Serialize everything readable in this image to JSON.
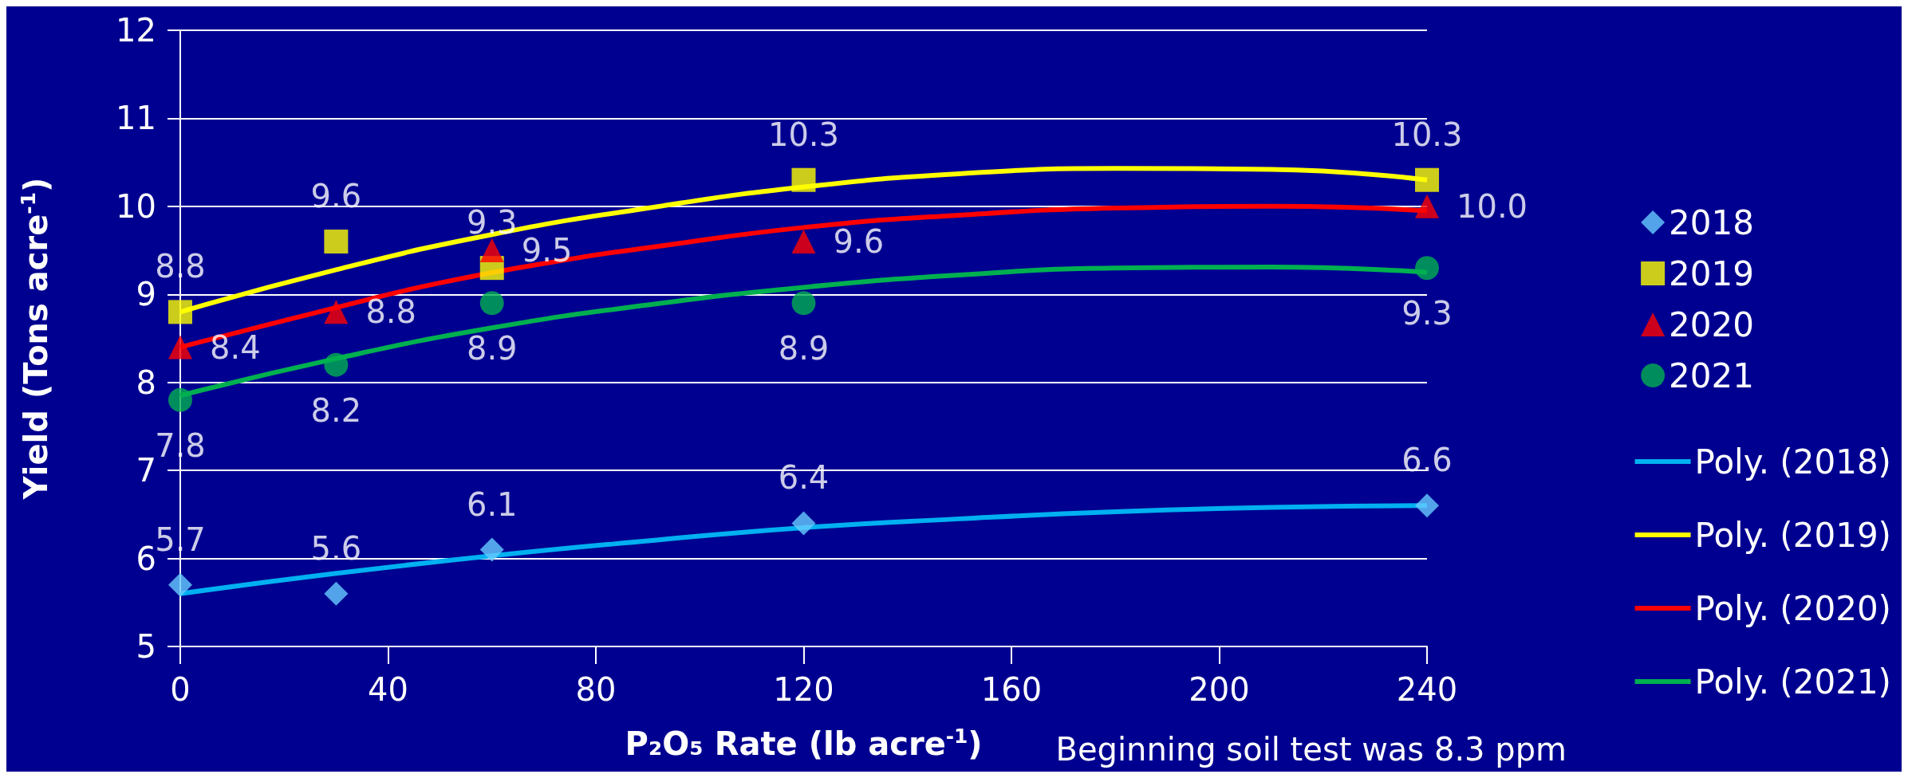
{
  "chart_data": {
    "type": "scatter",
    "xlabel": "P₂O₅ Rate (lb acre$^{-1}$)",
    "ylabel": "Yield (Tons acre$^{-1}$)",
    "annotations": [
      "Beginning soil test was 8.3 ppm"
    ],
    "xlim": [
      0,
      240
    ],
    "xticks": [
      0,
      40,
      80,
      120,
      160,
      200,
      240
    ],
    "ylim": [
      5,
      12
    ],
    "yticks": [
      5,
      6,
      7,
      8,
      9,
      10,
      11,
      12
    ],
    "grid": "y",
    "legend": "right",
    "series": [
      {
        "name": "2018",
        "marker": "diamond",
        "color": "#66ccff",
        "x": [
          0,
          30,
          60,
          120,
          240
        ],
        "values": [
          5.7,
          5.6,
          6.1,
          6.4,
          6.6
        ],
        "value_labels": [
          "5.7",
          "5.6",
          "6.1",
          "6.4",
          "6.6"
        ]
      },
      {
        "name": "2019",
        "marker": "square",
        "color": "#ffff00",
        "x": [
          0,
          30,
          60,
          120,
          240
        ],
        "values": [
          8.8,
          9.6,
          9.3,
          10.3,
          10.3
        ],
        "value_labels": [
          "8.8",
          "9.6",
          "9.3",
          "10.3",
          "10.3"
        ]
      },
      {
        "name": "2020",
        "marker": "triangle",
        "color": "#ff0000",
        "x": [
          0,
          30,
          60,
          120,
          240
        ],
        "values": [
          8.4,
          8.8,
          9.5,
          9.6,
          10.0
        ],
        "value_labels": [
          "8.4",
          "8.8",
          "9.5",
          "9.6",
          "10.0"
        ]
      },
      {
        "name": "2021",
        "marker": "circle",
        "color": "#00b050",
        "x": [
          0,
          30,
          60,
          120,
          240
        ],
        "values": [
          7.8,
          8.2,
          8.9,
          8.9,
          9.3
        ],
        "value_labels": [
          "7.8",
          "8.2",
          "8.9",
          "8.9",
          "9.3"
        ]
      },
      {
        "name": "Poly. (2018)",
        "type": "line",
        "color": "#00b0f0",
        "x": [
          0,
          30,
          60,
          90,
          120,
          150,
          180,
          210,
          240
        ],
        "values": [
          5.6,
          5.83,
          6.03,
          6.2,
          6.35,
          6.45,
          6.53,
          6.58,
          6.6
        ]
      },
      {
        "name": "Poly. (2019)",
        "type": "line",
        "color": "#ffff00",
        "x": [
          0,
          30,
          60,
          90,
          120,
          150,
          180,
          210,
          240
        ],
        "values": [
          8.8,
          9.28,
          9.68,
          9.98,
          10.22,
          10.37,
          10.43,
          10.42,
          10.3
        ]
      },
      {
        "name": "Poly. (2020)",
        "type": "line",
        "color": "#ff0000",
        "x": [
          0,
          30,
          50,
          75,
          90,
          120,
          150,
          180,
          210,
          240
        ],
        "values": [
          8.4,
          8.85,
          9.13,
          9.4,
          9.53,
          9.76,
          9.9,
          9.98,
          10.0,
          9.95
        ]
      },
      {
        "name": "Poly. (2021)",
        "type": "line",
        "color": "#00b050",
        "x": [
          0,
          30,
          60,
          90,
          120,
          150,
          180,
          210,
          240
        ],
        "values": [
          7.85,
          8.27,
          8.62,
          8.88,
          9.08,
          9.22,
          9.3,
          9.31,
          9.25
        ]
      }
    ]
  }
}
